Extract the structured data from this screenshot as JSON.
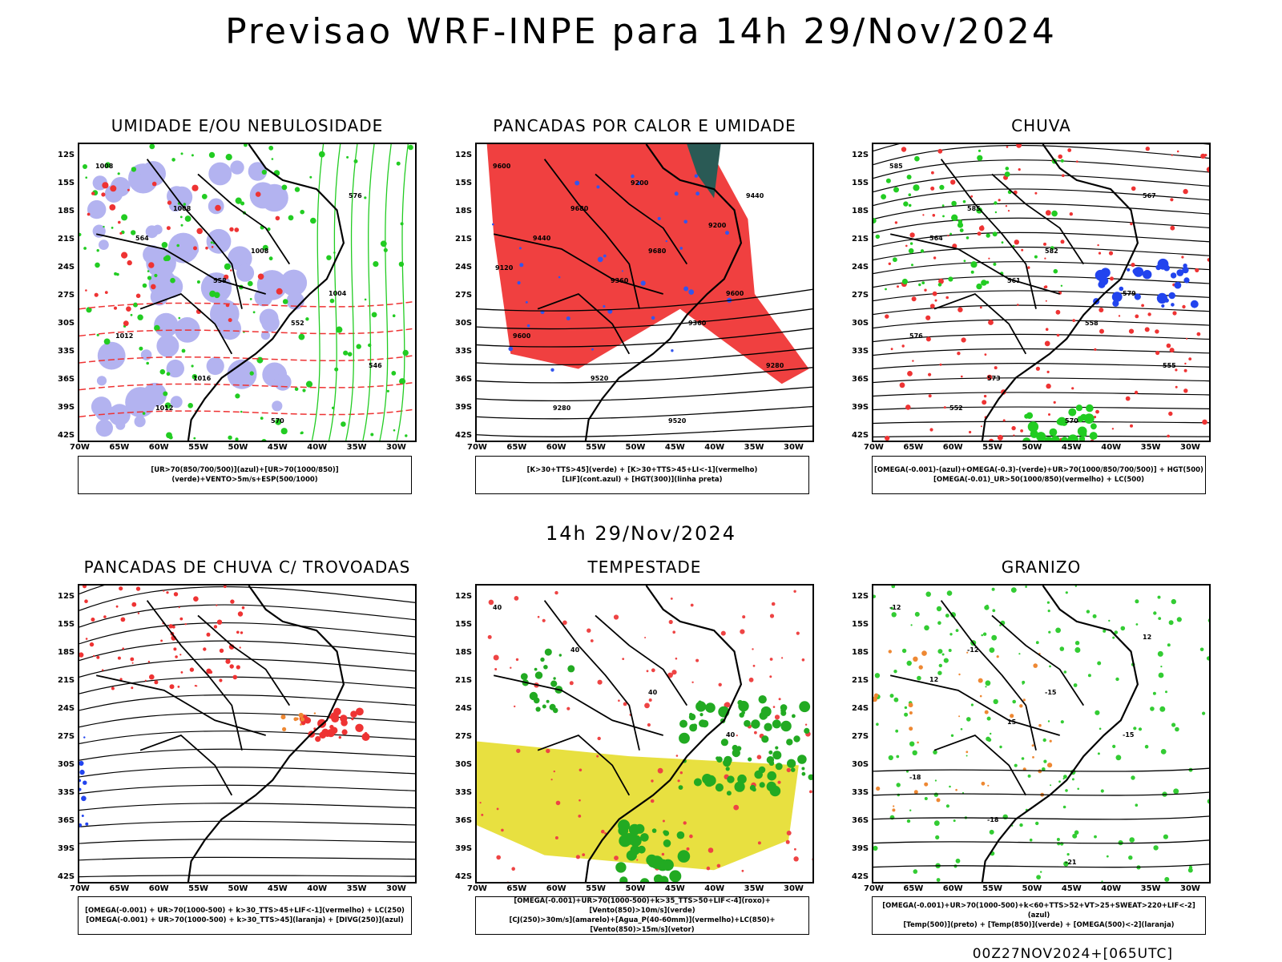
{
  "main_title": "Previsao WRF-INPE  para 14h 29/Nov/2024",
  "mid_title": "14h 29/Nov/2024",
  "footer_stamp": "00Z27NOV2024+[065UTC]",
  "axis": {
    "lat_labels": [
      "12S",
      "15S",
      "18S",
      "21S",
      "24S",
      "27S",
      "30S",
      "33S",
      "36S",
      "39S",
      "42S"
    ],
    "lon_labels": [
      "70W",
      "65W",
      "60W",
      "55W",
      "50W",
      "45W",
      "40W",
      "35W",
      "30W"
    ]
  },
  "chart_data": [
    {
      "type": "map",
      "title": "UMIDADE E/OU NEBULOSIDADE",
      "legend": [
        "[UR>70(850/700/500)](azul)+[UR>70(1000/850)](verde)+VENTO>5m/s+ESP(500/1000)"
      ],
      "contour_labels": [
        "1008",
        "1008",
        "1008",
        "1004",
        "1012",
        "1016",
        "570",
        "576",
        "564",
        "558",
        "552",
        "546",
        "1012"
      ],
      "colors": {
        "azul": "#b3b3f0",
        "verde": "#22cc22",
        "vermelho": "#ee3333"
      }
    },
    {
      "type": "map",
      "title": "PANCADAS POR CALOR E UMIDADE",
      "legend": [
        "[K>30+TTS>45](verde) + [K>30+TTS>45+LI<-1](vermelho)",
        "[LIF](cont.azul) + [HGT(300)](linha preta)"
      ],
      "contour_labels": [
        "9600",
        "9680",
        "9680",
        "9600",
        "9600",
        "9520",
        "9520",
        "9440",
        "9440",
        "9360",
        "9360",
        "9280",
        "9280",
        "9200",
        "9200",
        "9120"
      ],
      "colors": {
        "vermelho": "#f04040",
        "verde": "#2a5a55",
        "azul": "#3355ee"
      }
    },
    {
      "type": "map",
      "title": "CHUVA",
      "legend": [
        "[OMEGA(-0.001)-(azul)+OMEGA(-0.3)-(verde)+UR>70(1000/850/700/500)] + HGT(500)",
        "[OMEGA(-0.01)_UR>50(1000/850)(vermelho) + LC(500)"
      ],
      "contour_labels": [
        "585",
        "585",
        "582",
        "579",
        "576",
        "573",
        "570",
        "567",
        "564",
        "561",
        "558",
        "555",
        "552"
      ],
      "colors": {
        "azul": "#2244ee",
        "verde": "#22cc22",
        "vermelho": "#ee3333"
      }
    },
    {
      "type": "map",
      "title": "PANCADAS DE CHUVA C/ TROVOADAS",
      "legend": [
        "[OMEGA(-0.001) + UR>70(1000-500) + k>30_TTS>45+LIF<-1](vermelho) + LC(250)",
        "[OMEGA(-0.001) + UR>70(1000-500) + k>30_TTS>45](laranja) + [DIVG(250)](azul)"
      ],
      "contour_labels": [],
      "colors": {
        "vermelho": "#ee3333",
        "laranja": "#ee8833",
        "azul": "#2244ee"
      }
    },
    {
      "type": "map",
      "title": "TEMPESTADE",
      "legend": [
        "[OMEGA(-0.001)+UR>70(1000-500)+k>35_TTS>50+LIF<-4](roxo)+[Vento(850)>10m/s](verde)",
        "[CJ(250)>30m/s](amarelo)+[Agua_P(40-60mm)](vermelho)+LC(850)+[Vento(850)>15m/s](vetor)"
      ],
      "contour_labels": [
        "40",
        "40",
        "40",
        "40"
      ],
      "colors": {
        "amarelo": "#e8e040",
        "verde": "#22aa22",
        "vermelho": "#ee4444",
        "roxo": "#aa22cc"
      }
    },
    {
      "type": "map",
      "title": "GRANIZO",
      "legend": [
        "[OMEGA(-0.001)+UR>70(1000-500)+k<60+TTS>52+VT>25+SWEAT>220+LIF<-2](azul)",
        "[Temp(500)](preto) + [Temp(850)](verde) + [OMEGA(500)<-2](laranja)"
      ],
      "contour_labels": [
        "-12",
        "-12",
        "-15",
        "-15",
        "-18",
        "-18",
        "-21",
        "12",
        "12",
        "15"
      ],
      "colors": {
        "verde": "#33cc33",
        "laranja": "#ee8833",
        "preto": "#000000"
      }
    }
  ]
}
